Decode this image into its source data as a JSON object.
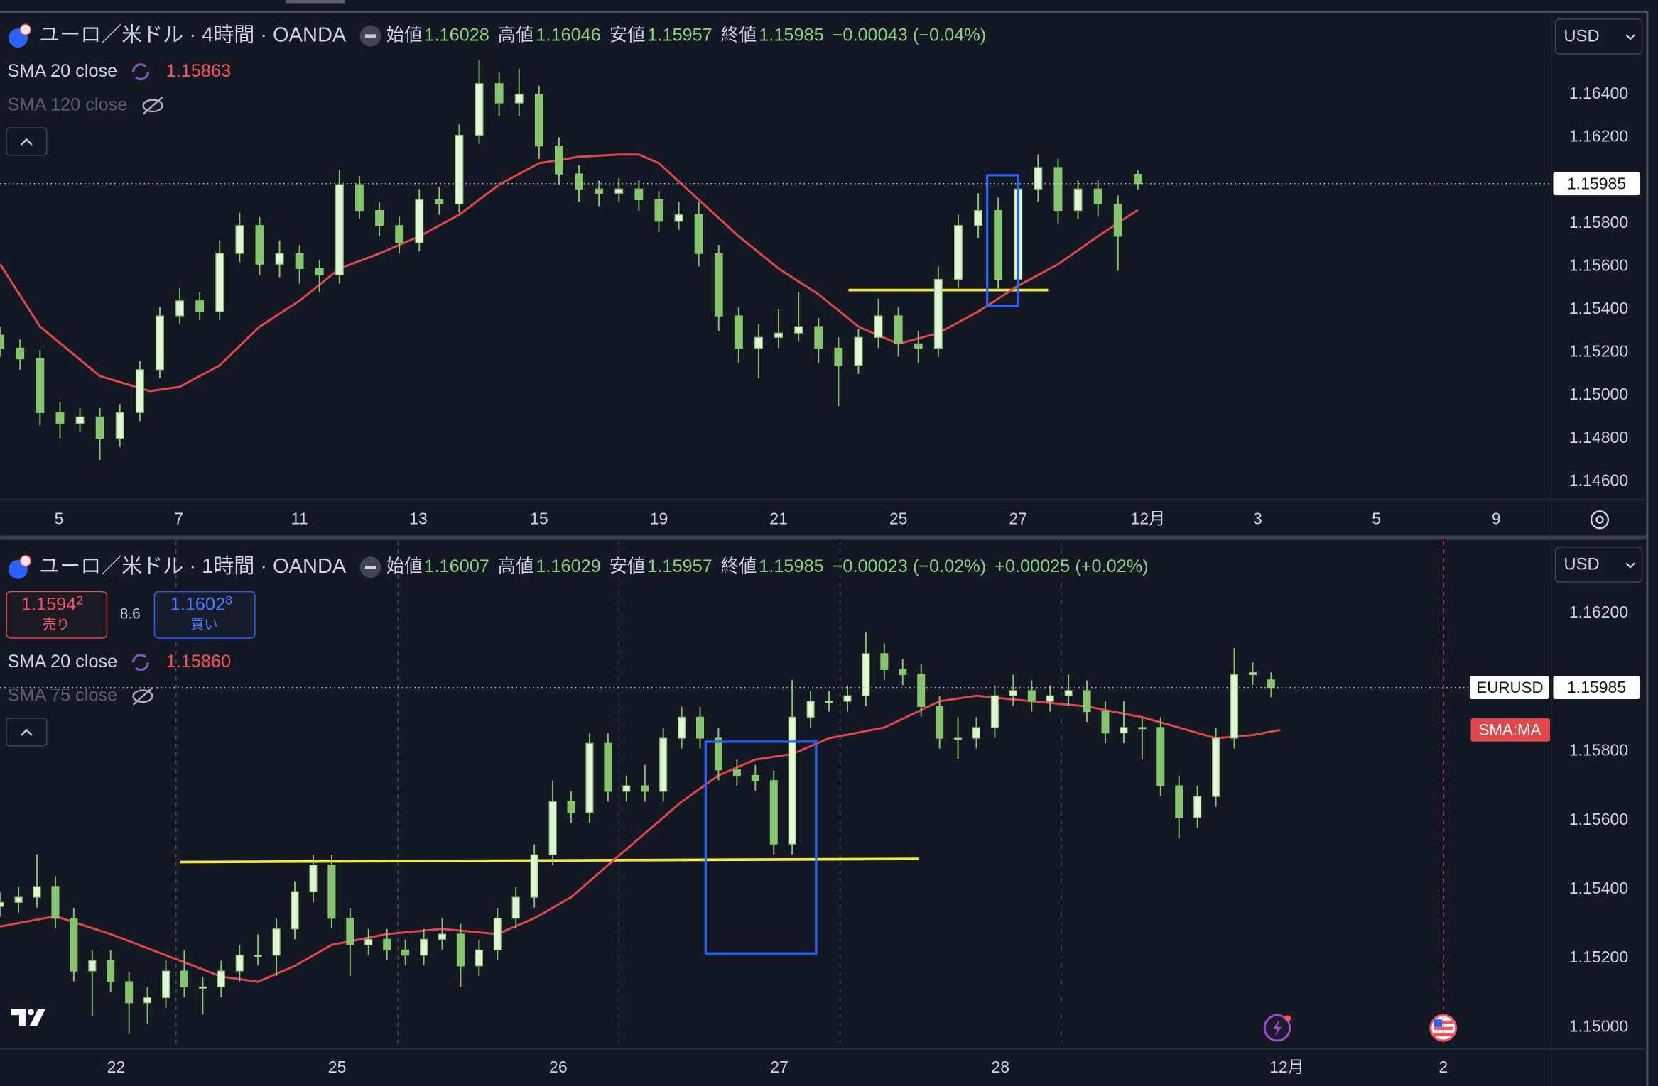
{
  "chart_data": [
    {
      "type": "candlestick",
      "title": "ユーロ／米ドル · 4時間 · OANDA",
      "legend": [
        {
          "label": "始値",
          "value": "1.16028"
        },
        {
          "label": "高値",
          "value": "1.16046"
        },
        {
          "label": "安値",
          "value": "1.15957"
        },
        {
          "label": "終値",
          "value": "1.15985"
        }
      ],
      "changes": [
        "−0.00043 (−0.04%)"
      ],
      "indicator_value": "1.15863",
      "hidden_indicator": "SMA 120 close",
      "currency": "USD",
      "colors": {
        "up": "#dff5d6",
        "down": "#86c46f",
        "wick": "#86c46f"
      },
      "candles": {
        "x": [
          0,
          2,
          4,
          6,
          8,
          10,
          12,
          14,
          16,
          18,
          20,
          22,
          24,
          26,
          28,
          30,
          32,
          34,
          36,
          38,
          40,
          42,
          44,
          46,
          48,
          50,
          52,
          54,
          56,
          58,
          60,
          62,
          64,
          66,
          68,
          70,
          72,
          74,
          76,
          78,
          80,
          82,
          84,
          86,
          88,
          90,
          92,
          94,
          96,
          98,
          100,
          102,
          104,
          106,
          108,
          110,
          112,
          114
        ],
        "open": [
          1.1528,
          1.1522,
          1.1517,
          1.1492,
          1.1487,
          1.149,
          1.148,
          1.1492,
          1.1512,
          1.1537,
          1.1544,
          1.1539,
          1.1566,
          1.1579,
          1.1561,
          1.1566,
          1.1559,
          1.1556,
          1.1598,
          1.1586,
          1.1579,
          1.1571,
          1.1591,
          1.1589,
          1.1621,
          1.1645,
          1.1636,
          1.164,
          1.1616,
          1.1603,
          1.1596,
          1.1594,
          1.1596,
          1.1591,
          1.1581,
          1.1584,
          1.1566,
          1.1537,
          1.1522,
          1.1527,
          1.1529,
          1.1532,
          1.1522,
          1.1514,
          1.1527,
          1.1537,
          1.1524,
          1.1522,
          1.1554,
          1.1579,
          1.1586,
          1.1554,
          1.1596,
          1.1606,
          1.1586,
          1.1596,
          1.1589,
          1.16028
        ],
        "high": [
          1.1532,
          1.1526,
          1.1521,
          1.1497,
          1.1494,
          1.1494,
          1.1496,
          1.1516,
          1.1541,
          1.155,
          1.1548,
          1.1572,
          1.1585,
          1.1583,
          1.1572,
          1.157,
          1.1563,
          1.1605,
          1.1602,
          1.159,
          1.1583,
          1.1596,
          1.1597,
          1.1626,
          1.1656,
          1.165,
          1.1652,
          1.1644,
          1.162,
          1.1607,
          1.16,
          1.1601,
          1.16,
          1.1595,
          1.159,
          1.159,
          1.157,
          1.1541,
          1.1533,
          1.154,
          1.1548,
          1.1536,
          1.1527,
          1.1531,
          1.1545,
          1.1541,
          1.153,
          1.156,
          1.1584,
          1.1594,
          1.1592,
          1.1601,
          1.1612,
          1.161,
          1.16,
          1.16,
          1.1593,
          1.16046
        ],
        "low": [
          1.1518,
          1.1512,
          1.1486,
          1.148,
          1.1483,
          1.147,
          1.1476,
          1.1488,
          1.1508,
          1.1533,
          1.1535,
          1.1535,
          1.1562,
          1.1556,
          1.1555,
          1.1552,
          1.1548,
          1.1552,
          1.1582,
          1.1574,
          1.1566,
          1.1567,
          1.1584,
          1.1585,
          1.1617,
          1.163,
          1.163,
          1.161,
          1.1598,
          1.159,
          1.1588,
          1.159,
          1.1586,
          1.1576,
          1.1577,
          1.156,
          1.153,
          1.1515,
          1.1508,
          1.1522,
          1.1525,
          1.1515,
          1.1495,
          1.151,
          1.1522,
          1.1518,
          1.1515,
          1.1518,
          1.155,
          1.1573,
          1.1549,
          1.155,
          1.159,
          1.158,
          1.1582,
          1.1583,
          1.1558,
          1.15957
        ],
        "close": [
          1.1522,
          1.1517,
          1.1492,
          1.1487,
          1.149,
          1.148,
          1.1492,
          1.1512,
          1.1537,
          1.1544,
          1.1539,
          1.1566,
          1.1579,
          1.1561,
          1.1566,
          1.1559,
          1.1556,
          1.1598,
          1.1586,
          1.1579,
          1.1571,
          1.1591,
          1.1589,
          1.1621,
          1.1645,
          1.1636,
          1.164,
          1.1616,
          1.1603,
          1.1596,
          1.1594,
          1.1596,
          1.1591,
          1.1581,
          1.1584,
          1.1566,
          1.1537,
          1.1522,
          1.1527,
          1.1529,
          1.1532,
          1.1522,
          1.1514,
          1.1527,
          1.1537,
          1.1524,
          1.1522,
          1.1554,
          1.1579,
          1.1586,
          1.1554,
          1.1596,
          1.1606,
          1.1586,
          1.1596,
          1.1589,
          1.1574,
          1.15985
        ]
      },
      "series": [
        {
          "name": "SMA 20 close",
          "color": "#e0474c",
          "x": [
            0,
            4,
            10,
            15,
            18,
            22,
            26,
            30,
            34,
            38,
            42,
            46,
            50,
            54,
            58,
            62,
            64,
            66,
            70,
            74,
            78,
            82,
            86,
            90,
            94,
            98,
            102,
            106,
            110,
            114
          ],
          "values": [
            1.1561,
            1.1532,
            1.1509,
            1.1502,
            1.1504,
            1.1514,
            1.1532,
            1.1544,
            1.1559,
            1.1566,
            1.1574,
            1.1584,
            1.1598,
            1.1608,
            1.1611,
            1.1612,
            1.1612,
            1.1608,
            1.1591,
            1.1574,
            1.1559,
            1.1547,
            1.1532,
            1.1524,
            1.1529,
            1.1539,
            1.1551,
            1.1561,
            1.1574,
            1.15863
          ]
        }
      ],
      "last_price": 1.15985,
      "annotations": {
        "line": {
          "color": "#f2e74b",
          "x": [
            85,
            105
          ],
          "y": [
            1.1549,
            1.1549
          ]
        },
        "box": {
          "color": "#2962ff",
          "x": [
            98.9,
            102
          ],
          "y": [
            1.15416,
            1.16024
          ]
        }
      },
      "xlim": [
        0,
        155.4
      ],
      "xticks": [
        {
          "value": 5.9,
          "label": "5"
        },
        {
          "value": 17.9,
          "label": "7"
        },
        {
          "value": 30,
          "label": "11"
        },
        {
          "value": 41.9,
          "label": "13"
        },
        {
          "value": 54,
          "label": "15"
        },
        {
          "value": 66,
          "label": "19"
        },
        {
          "value": 78,
          "label": "21"
        },
        {
          "value": 90,
          "label": "25"
        },
        {
          "value": 102,
          "label": "27"
        },
        {
          "value": 115,
          "label": "12月"
        },
        {
          "value": 126,
          "label": "3"
        },
        {
          "value": 137.9,
          "label": "5"
        },
        {
          "value": 149.9,
          "label": "9"
        }
      ],
      "ylim": [
        1.1452,
        1.1678
      ],
      "yticks": [
        {
          "value": 1.164,
          "label": "1.16400"
        },
        {
          "value": 1.162,
          "label": "1.16200"
        },
        {
          "value": 1.16,
          "label": "1.16000"
        },
        {
          "value": 1.158,
          "label": "1.15800"
        },
        {
          "value": 1.156,
          "label": "1.15600"
        },
        {
          "value": 1.154,
          "label": "1.15400"
        },
        {
          "value": 1.152,
          "label": "1.15200"
        },
        {
          "value": 1.15,
          "label": "1.15000"
        },
        {
          "value": 1.148,
          "label": "1.14800"
        },
        {
          "value": 1.146,
          "label": "1.14600"
        }
      ],
      "grid": false
    },
    {
      "type": "candlestick",
      "title": "ユーロ／米ドル · 1時間 · OANDA",
      "legend": [
        {
          "label": "始値",
          "value": "1.16007"
        },
        {
          "label": "高値",
          "value": "1.16029"
        },
        {
          "label": "安値",
          "value": "1.15957"
        },
        {
          "label": "終値",
          "value": "1.15985"
        }
      ],
      "changes": [
        "−0.00023 (−0.02%)",
        "+0.00025 (+0.02%)"
      ],
      "indicator_value": "1.15860",
      "hidden_indicator": "SMA 75 close",
      "currency": "USD",
      "bid": {
        "price": "1.1594",
        "pip": "2",
        "label": "売り"
      },
      "spread": "8.6",
      "ask": {
        "price": "1.1602",
        "pip": "8",
        "label": "買い"
      },
      "symbol_tag": "EURUSD",
      "ma_tag": "SMA:MA",
      "colors": {
        "up": "#dff5d6",
        "down": "#86c46f",
        "wick": "#86c46f"
      },
      "candles": {
        "x": [
          0,
          2,
          4,
          6,
          8,
          10,
          12,
          14,
          16,
          18,
          20,
          22,
          24,
          26,
          28,
          30,
          32,
          34,
          36,
          38,
          40,
          42,
          44,
          46,
          48,
          50,
          52,
          54,
          56,
          58,
          60,
          62,
          64,
          66,
          68,
          70,
          72,
          74,
          76,
          78,
          80,
          82,
          84,
          86,
          88,
          90,
          92,
          94,
          96,
          98,
          100,
          102,
          104,
          106,
          108,
          110,
          112,
          114,
          116,
          118,
          120,
          122,
          124,
          126,
          128,
          130,
          132,
          134,
          136,
          138
        ],
        "open": [
          1.1535,
          1.15362,
          1.15377,
          1.15408,
          1.15316,
          1.15163,
          1.15193,
          1.15132,
          1.15071,
          1.15086,
          1.15163,
          1.15117,
          1.15117,
          1.15163,
          1.15209,
          1.15209,
          1.15285,
          1.15393,
          1.1547,
          1.15316,
          1.15239,
          1.15255,
          1.15224,
          1.15209,
          1.15255,
          1.1527,
          1.15178,
          1.15224,
          1.15316,
          1.15377,
          1.155,
          1.15654,
          1.15623,
          1.15823,
          1.15684,
          1.157,
          1.15684,
          1.15838,
          1.15899,
          1.15838,
          1.15746,
          1.1573,
          1.15715,
          1.15531,
          1.15899,
          1.15945,
          1.15945,
          1.15961,
          1.16083,
          1.16037,
          1.16022,
          1.1593,
          1.15838,
          1.15838,
          1.15869,
          1.15961,
          1.15976,
          1.15945,
          1.15961,
          1.15976,
          1.15915,
          1.15853,
          1.15869,
          1.15869,
          1.157,
          1.15608,
          1.15669,
          1.15838,
          1.16022,
          1.16007
        ],
        "high": [
          1.15392,
          1.15407,
          1.15501,
          1.15438,
          1.15346,
          1.15223,
          1.15223,
          1.15162,
          1.15116,
          1.15193,
          1.15223,
          1.15147,
          1.15193,
          1.15239,
          1.15269,
          1.15315,
          1.15423,
          1.155,
          1.155,
          1.15346,
          1.15285,
          1.15285,
          1.15254,
          1.15285,
          1.15316,
          1.153,
          1.15254,
          1.15346,
          1.15408,
          1.1553,
          1.15715,
          1.15684,
          1.15853,
          1.15853,
          1.1573,
          1.1576,
          1.15868,
          1.15929,
          1.15929,
          1.15868,
          1.15776,
          1.1576,
          1.15745,
          1.16007,
          1.15975,
          1.15975,
          1.15991,
          1.16144,
          1.16113,
          1.16067,
          1.16052,
          1.1596,
          1.15899,
          1.15899,
          1.15991,
          1.16022,
          1.16006,
          1.15991,
          1.16022,
          1.16006,
          1.15945,
          1.15945,
          1.15899,
          1.15899,
          1.1573,
          1.15699,
          1.15868,
          1.16099,
          1.16058,
          1.16029
        ],
        "low": [
          1.1532,
          1.15332,
          1.15347,
          1.15286,
          1.15133,
          1.15033,
          1.15102,
          1.14981,
          1.15011,
          1.15056,
          1.15087,
          1.15037,
          1.15087,
          1.15133,
          1.15179,
          1.15149,
          1.15255,
          1.15363,
          1.15286,
          1.15149,
          1.15209,
          1.15194,
          1.15179,
          1.15179,
          1.15225,
          1.15117,
          1.15148,
          1.15194,
          1.15286,
          1.15347,
          1.1547,
          1.15593,
          1.15593,
          1.15654,
          1.15654,
          1.15654,
          1.15654,
          1.15808,
          1.15808,
          1.15716,
          1.157,
          1.15685,
          1.15501,
          1.15501,
          1.15869,
          1.15915,
          1.15915,
          1.15931,
          1.16007,
          1.15992,
          1.159,
          1.15808,
          1.15778,
          1.15808,
          1.15839,
          1.15931,
          1.15915,
          1.15915,
          1.15931,
          1.15885,
          1.15823,
          1.15823,
          1.15777,
          1.1567,
          1.15547,
          1.15578,
          1.15639,
          1.15808,
          1.15992,
          1.15957
        ],
        "close": [
          1.15362,
          1.15377,
          1.15408,
          1.15316,
          1.15163,
          1.15193,
          1.15132,
          1.15071,
          1.15086,
          1.15163,
          1.15117,
          1.15117,
          1.15163,
          1.15209,
          1.15209,
          1.15285,
          1.15393,
          1.1547,
          1.15316,
          1.15239,
          1.15255,
          1.15224,
          1.15209,
          1.15255,
          1.1527,
          1.15178,
          1.15224,
          1.15316,
          1.15377,
          1.155,
          1.15654,
          1.15623,
          1.15823,
          1.15684,
          1.157,
          1.15684,
          1.15838,
          1.15899,
          1.15838,
          1.15746,
          1.1573,
          1.15715,
          1.15531,
          1.15899,
          1.15945,
          1.15945,
          1.15961,
          1.16083,
          1.16037,
          1.16022,
          1.1593,
          1.15838,
          1.15838,
          1.15869,
          1.15961,
          1.15976,
          1.15945,
          1.15961,
          1.15976,
          1.15915,
          1.15853,
          1.15869,
          1.15869,
          1.157,
          1.15608,
          1.15669,
          1.15838,
          1.16022,
          1.16028,
          1.15985
        ]
      },
      "series": [
        {
          "name": "SMA 20 close",
          "color": "#e0474c",
          "x": [
            0,
            6,
            12,
            18,
            24,
            28,
            32,
            36,
            42,
            48,
            54,
            58,
            62,
            66,
            70,
            74,
            78,
            82,
            86,
            90,
            96,
            102,
            106,
            112,
            118,
            124,
            128,
            132,
            136,
            139
          ],
          "values": [
            1.15292,
            1.15322,
            1.1527,
            1.15209,
            1.15147,
            1.15132,
            1.15178,
            1.15239,
            1.1527,
            1.15285,
            1.1527,
            1.15316,
            1.15377,
            1.1547,
            1.15562,
            1.15654,
            1.1573,
            1.15776,
            1.15792,
            1.15838,
            1.15869,
            1.15945,
            1.15961,
            1.15945,
            1.1593,
            1.15899,
            1.15869,
            1.15838,
            1.15847,
            1.15862
          ]
        }
      ],
      "last_price": 1.15985,
      "annotations": {
        "line": {
          "color": "#f2e74b",
          "x": [
            19.5,
            99.7
          ],
          "y": [
            1.15479,
            1.15488
          ]
        },
        "box": {
          "color": "#2962ff",
          "x": [
            76.6,
            88.6
          ],
          "y": [
            1.15214,
            1.15828
          ]
        }
      },
      "session_lines": [
        19.1,
        43.2,
        67.2,
        91.2,
        115.2
      ],
      "event_line": 156.7,
      "xlim": [
        0,
        168.4
      ],
      "xticks": [
        {
          "value": 12.6,
          "label": "22"
        },
        {
          "value": 36.6,
          "label": "25"
        },
        {
          "value": 60.6,
          "label": "26"
        },
        {
          "value": 84.6,
          "label": "27"
        },
        {
          "value": 108.6,
          "label": "28"
        },
        {
          "value": 139.7,
          "label": "12月"
        },
        {
          "value": 156.7,
          "label": "2"
        }
      ],
      "ylim": [
        1.1494,
        1.1641
      ],
      "yticks": [
        {
          "value": 1.162,
          "label": "1.16200"
        },
        {
          "value": 1.158,
          "label": "1.15800"
        },
        {
          "value": 1.156,
          "label": "1.15600"
        },
        {
          "value": 1.154,
          "label": "1.15400"
        },
        {
          "value": 1.152,
          "label": "1.15200"
        },
        {
          "value": 1.15,
          "label": "1.15000"
        }
      ],
      "grid": false
    }
  ]
}
